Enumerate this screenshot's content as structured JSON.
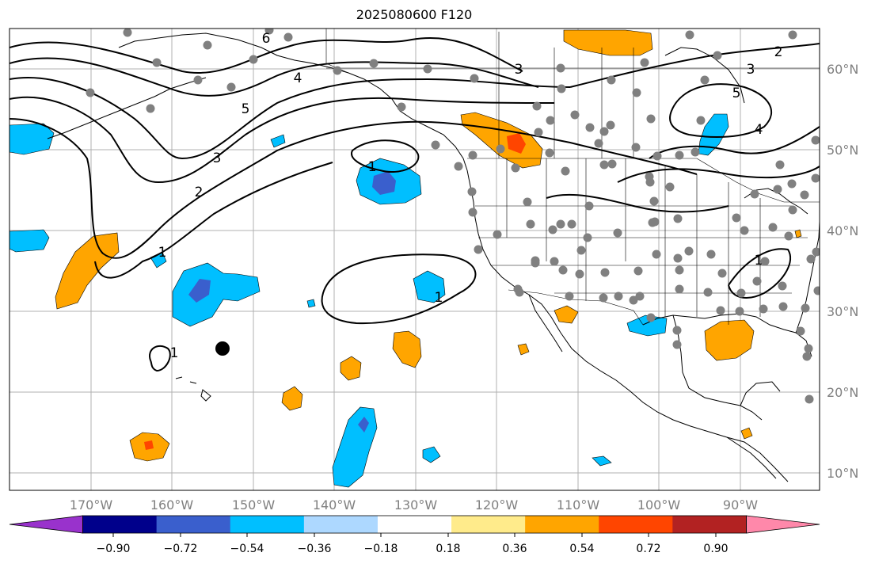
{
  "title": "2025080600 F120",
  "map": {
    "longitude_labels": [
      "170°W",
      "160°W",
      "150°W",
      "140°W",
      "130°W",
      "120°W",
      "110°W",
      "100°W",
      "90°W"
    ],
    "latitude_labels": [
      "60°N",
      "50°N",
      "40°N",
      "30°N",
      "20°N",
      "10°N"
    ],
    "contour_labels": [
      "6",
      "5",
      "4",
      "3",
      "2",
      "1",
      "1",
      "1",
      "1",
      "5",
      "4",
      "3",
      "2",
      "1",
      "3"
    ],
    "station_marker_color": "#808080",
    "special_marker_color": "#000000"
  },
  "colorbar": {
    "tick_labels": [
      "−0.90",
      "−0.72",
      "−0.54",
      "−0.36",
      "−0.18",
      "0.18",
      "0.36",
      "0.54",
      "0.72",
      "0.90"
    ],
    "colors": [
      "#9932cc",
      "#00008b",
      "#3a5fcd",
      "#00bfff",
      "#add8ff",
      "#ffffff",
      "#ffeb8b",
      "#ffa500",
      "#ff4500",
      "#b22222",
      "#ff88aa"
    ]
  }
}
